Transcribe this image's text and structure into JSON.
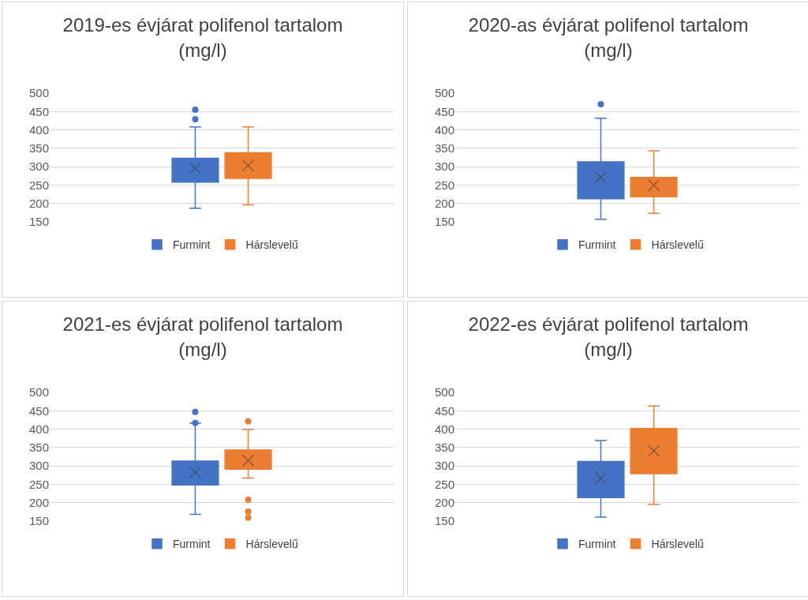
{
  "chart_data": [
    {
      "type": "box",
      "title": "2019-es évjárat polifenol tartalom (mg/l)",
      "categories": [
        null
      ],
      "ylim": [
        150,
        500
      ],
      "yticks": [
        150,
        200,
        250,
        300,
        350,
        400,
        450,
        500
      ],
      "grid": "y",
      "legend": "bottom",
      "series": [
        {
          "name": "Furmint",
          "color": "#4472c4",
          "boxes": [
            {
              "low": 187,
              "q1": 258,
              "median": 294,
              "q3": 323,
              "high": 408,
              "mean": 296,
              "outliers": [
                429,
                455
              ]
            }
          ]
        },
        {
          "name": "Hárslevelű",
          "color": "#ed7d31",
          "boxes": [
            {
              "low": 196,
              "q1": 268,
              "median": 312,
              "q3": 338,
              "high": 408,
              "mean": 303
            }
          ]
        }
      ]
    },
    {
      "type": "box",
      "title": "2020-as évjárat polifenol tartalom (mg/l)",
      "categories": [
        null
      ],
      "ylim": [
        150,
        500
      ],
      "yticks": [
        150,
        200,
        250,
        300,
        350,
        400,
        450,
        500
      ],
      "grid": "y",
      "legend": "bottom",
      "series": [
        {
          "name": "Furmint",
          "color": "#4472c4",
          "boxes": [
            {
              "low": 157,
              "q1": 213,
              "median": 252,
              "q3": 313,
              "high": 432,
              "mean": 271,
              "outliers": [
                470
              ]
            }
          ]
        },
        {
          "name": "Hárslevelű",
          "color": "#ed7d31",
          "boxes": [
            {
              "low": 173,
              "q1": 218,
              "median": 262,
              "q3": 271,
              "high": 343,
              "mean": 250
            }
          ]
        }
      ]
    },
    {
      "type": "box",
      "title": "2021-es évjárat polifenol tartalom (mg/l)",
      "categories": [
        null
      ],
      "ylim": [
        150,
        500
      ],
      "yticks": [
        150,
        200,
        250,
        300,
        350,
        400,
        450,
        500
      ],
      "grid": "y",
      "legend": "bottom",
      "series": [
        {
          "name": "Furmint",
          "color": "#4472c4",
          "boxes": [
            {
              "low": 168,
              "q1": 248,
              "median": 285,
              "q3": 313,
              "high": 416,
              "mean": 282,
              "outliers": [
                417,
                447
              ]
            }
          ]
        },
        {
          "name": "Hárslevelű",
          "color": "#ed7d31",
          "boxes": [
            {
              "low": 267,
              "q1": 291,
              "median": 319,
              "q3": 343,
              "high": 399,
              "mean": 315,
              "outliers": [
                421,
                208,
                176,
                159
              ]
            }
          ]
        }
      ]
    },
    {
      "type": "box",
      "title": "2022-es évjárat polifenol tartalom (mg/l)",
      "categories": [
        null
      ],
      "ylim": [
        150,
        500
      ],
      "yticks": [
        150,
        200,
        250,
        300,
        350,
        400,
        450,
        500
      ],
      "grid": "y",
      "legend": "bottom",
      "series": [
        {
          "name": "Furmint",
          "color": "#4472c4",
          "boxes": [
            {
              "low": 161,
              "q1": 214,
              "median": 281,
              "q3": 312,
              "high": 369,
              "mean": 266
            }
          ]
        },
        {
          "name": "Hárslevelű",
          "color": "#ed7d31",
          "boxes": [
            {
              "low": 195,
              "q1": 279,
              "median": 360,
              "q3": 402,
              "high": 463,
              "mean": 341
            }
          ]
        }
      ]
    }
  ]
}
